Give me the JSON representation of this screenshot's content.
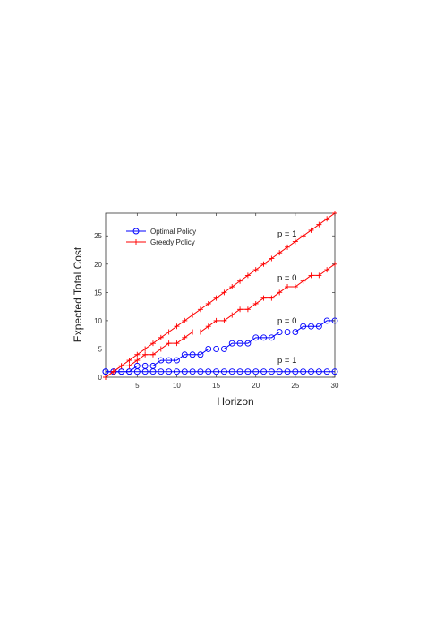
{
  "chart_data": {
    "type": "line",
    "xlabel": "Horizon",
    "ylabel": "Expected Total Cost",
    "xlim": [
      1,
      30
    ],
    "ylim": [
      0,
      29
    ],
    "xticks": [
      5,
      10,
      15,
      20,
      25,
      30
    ],
    "yticks": [
      0,
      5,
      10,
      15,
      20,
      25
    ],
    "grid": false,
    "legend_position": "top-left",
    "legend": [
      {
        "label": "Optimal Policy",
        "color": "#0000ff",
        "marker": "circle"
      },
      {
        "label": "Greedy Policy",
        "color": "#ff0000",
        "marker": "plus"
      }
    ],
    "series": [
      {
        "policy": "Optimal Policy",
        "p_label": "p = 1",
        "color": "#0000ff",
        "marker": "circle",
        "x": [
          1,
          2,
          3,
          4,
          5,
          6,
          7,
          8,
          9,
          10,
          11,
          12,
          13,
          14,
          15,
          16,
          17,
          18,
          19,
          20,
          21,
          22,
          23,
          24,
          25,
          26,
          27,
          28,
          29,
          30
        ],
        "y": [
          1,
          1,
          1,
          1,
          1,
          1,
          1,
          1,
          1,
          1,
          1,
          1,
          1,
          1,
          1,
          1,
          1,
          1,
          1,
          1,
          1,
          1,
          1,
          1,
          1,
          1,
          1,
          1,
          1,
          1
        ]
      },
      {
        "policy": "Optimal Policy",
        "p_label": "p = 0",
        "color": "#0000ff",
        "marker": "circle",
        "x": [
          1,
          2,
          3,
          4,
          5,
          6,
          7,
          8,
          9,
          10,
          11,
          12,
          13,
          14,
          15,
          16,
          17,
          18,
          19,
          20,
          21,
          22,
          23,
          24,
          25,
          26,
          27,
          28,
          29,
          30
        ],
        "y": [
          1,
          1,
          1,
          1,
          2,
          2,
          2,
          3,
          3,
          3,
          4,
          4,
          4,
          5,
          5,
          5,
          6,
          6,
          6,
          7,
          7,
          7,
          8,
          8,
          8,
          9,
          9,
          9,
          10,
          10
        ]
      },
      {
        "policy": "Greedy Policy",
        "p_label": "p = 0",
        "color": "#ff0000",
        "marker": "plus",
        "x": [
          1,
          2,
          3,
          4,
          5,
          6,
          7,
          8,
          9,
          10,
          11,
          12,
          13,
          14,
          15,
          16,
          17,
          18,
          19,
          20,
          21,
          22,
          23,
          24,
          25,
          26,
          27,
          28,
          29,
          30
        ],
        "y": [
          0,
          1,
          2,
          2,
          3,
          4,
          4,
          5,
          6,
          6,
          7,
          8,
          8,
          9,
          10,
          10,
          11,
          12,
          12,
          13,
          14,
          14,
          15,
          16,
          16,
          17,
          18,
          18,
          19,
          20
        ]
      },
      {
        "policy": "Greedy Policy",
        "p_label": "p = 1",
        "color": "#ff0000",
        "marker": "plus",
        "x": [
          1,
          2,
          3,
          4,
          5,
          6,
          7,
          8,
          9,
          10,
          11,
          12,
          13,
          14,
          15,
          16,
          17,
          18,
          19,
          20,
          21,
          22,
          23,
          24,
          25,
          26,
          27,
          28,
          29,
          30
        ],
        "y": [
          0,
          1,
          2,
          3,
          4,
          5,
          6,
          7,
          8,
          9,
          10,
          11,
          12,
          13,
          14,
          15,
          16,
          17,
          18,
          19,
          20,
          21,
          22,
          23,
          24,
          25,
          26,
          27,
          28,
          29
        ]
      }
    ],
    "annotations": [
      "p = 1",
      "p = 0",
      "p = 0",
      "p = 1"
    ]
  }
}
